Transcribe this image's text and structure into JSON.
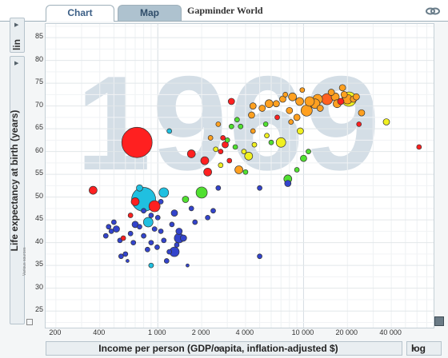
{
  "tabs": [
    {
      "label": "Chart"
    },
    {
      "label": "Map"
    }
  ],
  "app_title": "Gapminder World",
  "y_controls": {
    "scale_label": "lin",
    "indicator_label": "Life expectancy at birth (years)"
  },
  "x_controls": {
    "indicator_label": "Income per person (GDP/capita, inflation-adjusted $)",
    "scale_label": "log"
  },
  "sources_label": "Various sources",
  "year": "1969",
  "icons": {
    "link": "link-icon",
    "resize": "resize-icon",
    "table": "table-icon"
  },
  "chart_data": {
    "type": "scatter",
    "title": "",
    "xlabel": "Income per person (GDP/capita, inflation-adjusted $)",
    "ylabel": "Life expectancy at birth (years)",
    "xscale": "log",
    "xlim": [
      170,
      80000
    ],
    "ylim": [
      21,
      88
    ],
    "xticks": [
      200,
      400,
      1000,
      2000,
      4000,
      10000,
      20000,
      40000
    ],
    "xtick_labels": [
      "200",
      "400",
      "1 000",
      "2 000",
      "4 000",
      "10 000",
      "20 000",
      "40 000"
    ],
    "yticks": [
      25,
      30,
      35,
      40,
      45,
      50,
      55,
      60,
      65,
      70,
      75,
      80,
      85
    ],
    "grid": true,
    "colors": {
      "sub_saharan_africa": "#3344cc",
      "south_asia": "#20c0e0",
      "east_asia": "#e03030",
      "americas": "#50e030",
      "europe_central_asia": "#ffa020",
      "middle_east": "#f0f020"
    },
    "points": [
      {
        "x": 720,
        "y": 62,
        "r": 19,
        "color": "#ff2020"
      },
      {
        "x": 800,
        "y": 49.5,
        "r": 15,
        "color": "#20c0e0"
      },
      {
        "x": 950,
        "y": 48,
        "r": 7,
        "color": "#ff2020"
      },
      {
        "x": 750,
        "y": 52,
        "r": 4,
        "color": "#20c0e0"
      },
      {
        "x": 700,
        "y": 49,
        "r": 5,
        "color": "#ff2020"
      },
      {
        "x": 1100,
        "y": 51,
        "r": 6,
        "color": "#20c0e0"
      },
      {
        "x": 360,
        "y": 51.5,
        "r": 5,
        "color": "#ff2020"
      },
      {
        "x": 860,
        "y": 44.5,
        "r": 6,
        "color": "#20c0e0"
      },
      {
        "x": 900,
        "y": 35,
        "r": 3,
        "color": "#20c0e0"
      },
      {
        "x": 1400,
        "y": 41,
        "r": 6,
        "color": "#3344cc"
      },
      {
        "x": 1700,
        "y": 59.5,
        "r": 5,
        "color": "#ff2020"
      },
      {
        "x": 2100,
        "y": 58,
        "r": 5,
        "color": "#ff2020"
      },
      {
        "x": 2000,
        "y": 51,
        "r": 7,
        "color": "#50e030"
      },
      {
        "x": 2200,
        "y": 55.5,
        "r": 5,
        "color": "#ff2020"
      },
      {
        "x": 1200,
        "y": 64.5,
        "r": 3,
        "color": "#20c0e0"
      },
      {
        "x": 2900,
        "y": 61.5,
        "r": 4,
        "color": "#ff2020"
      },
      {
        "x": 2800,
        "y": 63,
        "r": 3,
        "color": "#ff2020"
      },
      {
        "x": 2700,
        "y": 60,
        "r": 3,
        "color": "#ff2020"
      },
      {
        "x": 3200,
        "y": 65.5,
        "r": 3,
        "color": "#50e030"
      },
      {
        "x": 3500,
        "y": 67,
        "r": 3,
        "color": "#50e030"
      },
      {
        "x": 3200,
        "y": 71,
        "r": 4,
        "color": "#ff2020"
      },
      {
        "x": 4500,
        "y": 70,
        "r": 4,
        "color": "#ffa020"
      },
      {
        "x": 3600,
        "y": 56,
        "r": 5,
        "color": "#ffa020"
      },
      {
        "x": 4200,
        "y": 59,
        "r": 5,
        "color": "#f0f020"
      },
      {
        "x": 4000,
        "y": 55.5,
        "r": 3,
        "color": "#50e030"
      },
      {
        "x": 4500,
        "y": 64.5,
        "r": 3,
        "color": "#ffa020"
      },
      {
        "x": 5500,
        "y": 66,
        "r": 3,
        "color": "#50e030"
      },
      {
        "x": 6000,
        "y": 62,
        "r": 3,
        "color": "#50e030"
      },
      {
        "x": 7000,
        "y": 62,
        "r": 6,
        "color": "#f0f020"
      },
      {
        "x": 7800,
        "y": 54,
        "r": 5,
        "color": "#50e030"
      },
      {
        "x": 7800,
        "y": 53,
        "r": 4,
        "color": "#3344cc"
      },
      {
        "x": 8000,
        "y": 69,
        "r": 4,
        "color": "#ffa020"
      },
      {
        "x": 9000,
        "y": 67.5,
        "r": 4,
        "color": "#ffa020"
      },
      {
        "x": 9500,
        "y": 64.5,
        "r": 4,
        "color": "#f0f020"
      },
      {
        "x": 10500,
        "y": 69,
        "r": 7,
        "color": "#ffa020"
      },
      {
        "x": 12500,
        "y": 71.5,
        "r": 6,
        "color": "#ffa020"
      },
      {
        "x": 14500,
        "y": 71.5,
        "r": 7,
        "color": "#ff6020"
      },
      {
        "x": 12000,
        "y": 70.5,
        "r": 6,
        "color": "#ffa020"
      },
      {
        "x": 16500,
        "y": 72,
        "r": 5,
        "color": "#ffa020"
      },
      {
        "x": 18000,
        "y": 71,
        "r": 4,
        "color": "#ff2020"
      },
      {
        "x": 17000,
        "y": 70.5,
        "r": 5,
        "color": "#ffa020"
      },
      {
        "x": 19000,
        "y": 72.5,
        "r": 4,
        "color": "#ffa020"
      },
      {
        "x": 20000,
        "y": 71.5,
        "r": 6,
        "color": "#ffa020"
      },
      {
        "x": 20500,
        "y": 71.5,
        "r": 9,
        "color": "#f0f020"
      },
      {
        "x": 22000,
        "y": 71.5,
        "r": 4,
        "color": "#ffa020"
      },
      {
        "x": 23000,
        "y": 72,
        "r": 4,
        "color": "#ffa020"
      },
      {
        "x": 24000,
        "y": 66,
        "r": 3,
        "color": "#ff2020"
      },
      {
        "x": 25000,
        "y": 68.5,
        "r": 4,
        "color": "#ffa020"
      },
      {
        "x": 37000,
        "y": 66.5,
        "r": 4,
        "color": "#f0f020"
      },
      {
        "x": 62000,
        "y": 61,
        "r": 3,
        "color": "#ff2020"
      },
      {
        "x": 9000,
        "y": 56,
        "r": 3,
        "color": "#50e030"
      },
      {
        "x": 5000,
        "y": 52,
        "r": 3,
        "color": "#3344cc"
      },
      {
        "x": 5000,
        "y": 37,
        "r": 3,
        "color": "#3344cc"
      },
      {
        "x": 1600,
        "y": 35,
        "r": 2,
        "color": "#3344cc"
      },
      {
        "x": 1500,
        "y": 41,
        "r": 4,
        "color": "#3344cc"
      },
      {
        "x": 1400,
        "y": 42.5,
        "r": 4,
        "color": "#3344cc"
      },
      {
        "x": 1300,
        "y": 46.5,
        "r": 4,
        "color": "#3344cc"
      },
      {
        "x": 1250,
        "y": 44,
        "r": 3,
        "color": "#3344cc"
      },
      {
        "x": 1200,
        "y": 38,
        "r": 3,
        "color": "#3344cc"
      },
      {
        "x": 1100,
        "y": 40.5,
        "r": 3,
        "color": "#3344cc"
      },
      {
        "x": 1050,
        "y": 42.5,
        "r": 3,
        "color": "#3344cc"
      },
      {
        "x": 1000,
        "y": 45.5,
        "r": 3,
        "color": "#3344cc"
      },
      {
        "x": 950,
        "y": 43,
        "r": 3,
        "color": "#3344cc"
      },
      {
        "x": 900,
        "y": 40,
        "r": 3,
        "color": "#3344cc"
      },
      {
        "x": 850,
        "y": 38.5,
        "r": 3,
        "color": "#3344cc"
      },
      {
        "x": 800,
        "y": 41.5,
        "r": 3,
        "color": "#3344cc"
      },
      {
        "x": 750,
        "y": 43.5,
        "r": 3,
        "color": "#3344cc"
      },
      {
        "x": 700,
        "y": 44,
        "r": 4,
        "color": "#3344cc"
      },
      {
        "x": 680,
        "y": 40,
        "r": 3,
        "color": "#3344cc"
      },
      {
        "x": 650,
        "y": 42,
        "r": 3,
        "color": "#3344cc"
      },
      {
        "x": 600,
        "y": 37.5,
        "r": 3,
        "color": "#3344cc"
      },
      {
        "x": 550,
        "y": 40.5,
        "r": 3,
        "color": "#3344cc"
      },
      {
        "x": 520,
        "y": 43,
        "r": 4,
        "color": "#3344cc"
      },
      {
        "x": 500,
        "y": 44.5,
        "r": 3,
        "color": "#3344cc"
      },
      {
        "x": 480,
        "y": 42.5,
        "r": 3,
        "color": "#3344cc"
      },
      {
        "x": 460,
        "y": 43.5,
        "r": 3,
        "color": "#3344cc"
      },
      {
        "x": 440,
        "y": 41.5,
        "r": 3,
        "color": "#3344cc"
      },
      {
        "x": 560,
        "y": 37,
        "r": 3,
        "color": "#3344cc"
      },
      {
        "x": 620,
        "y": 36,
        "r": 2,
        "color": "#3344cc"
      },
      {
        "x": 800,
        "y": 47,
        "r": 3,
        "color": "#3344cc"
      },
      {
        "x": 900,
        "y": 46,
        "r": 3,
        "color": "#3344cc"
      },
      {
        "x": 1050,
        "y": 49,
        "r": 3,
        "color": "#3344cc"
      },
      {
        "x": 1350,
        "y": 39.5,
        "r": 3,
        "color": "#3344cc"
      },
      {
        "x": 1700,
        "y": 47.5,
        "r": 3,
        "color": "#3344cc"
      },
      {
        "x": 1800,
        "y": 44.5,
        "r": 3,
        "color": "#3344cc"
      },
      {
        "x": 1550,
        "y": 49.5,
        "r": 4,
        "color": "#50e030"
      },
      {
        "x": 1300,
        "y": 38,
        "r": 6,
        "color": "#3344cc"
      },
      {
        "x": 1150,
        "y": 36,
        "r": 3,
        "color": "#3344cc"
      },
      {
        "x": 990,
        "y": 39,
        "r": 3,
        "color": "#3344cc"
      },
      {
        "x": 650,
        "y": 46,
        "r": 3,
        "color": "#ff2020"
      },
      {
        "x": 580,
        "y": 41,
        "r": 3,
        "color": "#ff2020"
      },
      {
        "x": 2600,
        "y": 52,
        "r": 3,
        "color": "#3344cc"
      },
      {
        "x": 2400,
        "y": 47,
        "r": 3,
        "color": "#3344cc"
      },
      {
        "x": 2200,
        "y": 45.5,
        "r": 3,
        "color": "#3344cc"
      },
      {
        "x": 3000,
        "y": 62.5,
        "r": 3,
        "color": "#50e030"
      },
      {
        "x": 3400,
        "y": 61,
        "r": 3,
        "color": "#50e030"
      },
      {
        "x": 3700,
        "y": 65.5,
        "r": 3,
        "color": "#50e030"
      },
      {
        "x": 4400,
        "y": 68,
        "r": 4,
        "color": "#ffa020"
      },
      {
        "x": 5200,
        "y": 69.5,
        "r": 4,
        "color": "#ffa020"
      },
      {
        "x": 5800,
        "y": 70.5,
        "r": 5,
        "color": "#ffa020"
      },
      {
        "x": 6500,
        "y": 70.5,
        "r": 4,
        "color": "#ffa020"
      },
      {
        "x": 7200,
        "y": 71.5,
        "r": 4,
        "color": "#ffa020"
      },
      {
        "x": 8400,
        "y": 72,
        "r": 5,
        "color": "#ffa020"
      },
      {
        "x": 9400,
        "y": 71,
        "r": 5,
        "color": "#ffa020"
      },
      {
        "x": 11000,
        "y": 71,
        "r": 6,
        "color": "#ffa020"
      },
      {
        "x": 13000,
        "y": 69.5,
        "r": 4,
        "color": "#ffa020"
      },
      {
        "x": 15500,
        "y": 73,
        "r": 4,
        "color": "#ffa020"
      },
      {
        "x": 18500,
        "y": 74,
        "r": 4,
        "color": "#ffa020"
      },
      {
        "x": 7500,
        "y": 72.5,
        "r": 3,
        "color": "#ffa020"
      },
      {
        "x": 9800,
        "y": 73.5,
        "r": 3,
        "color": "#ffa020"
      },
      {
        "x": 6600,
        "y": 67.5,
        "r": 3,
        "color": "#ff2020"
      },
      {
        "x": 8200,
        "y": 66.5,
        "r": 3,
        "color": "#ffa020"
      },
      {
        "x": 5600,
        "y": 63.5,
        "r": 3,
        "color": "#f0f020"
      },
      {
        "x": 4600,
        "y": 61.5,
        "r": 3,
        "color": "#f0f020"
      },
      {
        "x": 3900,
        "y": 60,
        "r": 3,
        "color": "#f0f020"
      },
      {
        "x": 2500,
        "y": 60.5,
        "r": 3,
        "color": "#f0f020"
      },
      {
        "x": 2700,
        "y": 57,
        "r": 3,
        "color": "#f0f020"
      },
      {
        "x": 3100,
        "y": 58,
        "r": 3,
        "color": "#ff2020"
      },
      {
        "x": 2300,
        "y": 63,
        "r": 3,
        "color": "#ffa020"
      },
      {
        "x": 2600,
        "y": 66,
        "r": 3,
        "color": "#ffa020"
      },
      {
        "x": 10000,
        "y": 58.5,
        "r": 4,
        "color": "#50e030"
      },
      {
        "x": 10800,
        "y": 60,
        "r": 3,
        "color": "#50e030"
      }
    ]
  }
}
